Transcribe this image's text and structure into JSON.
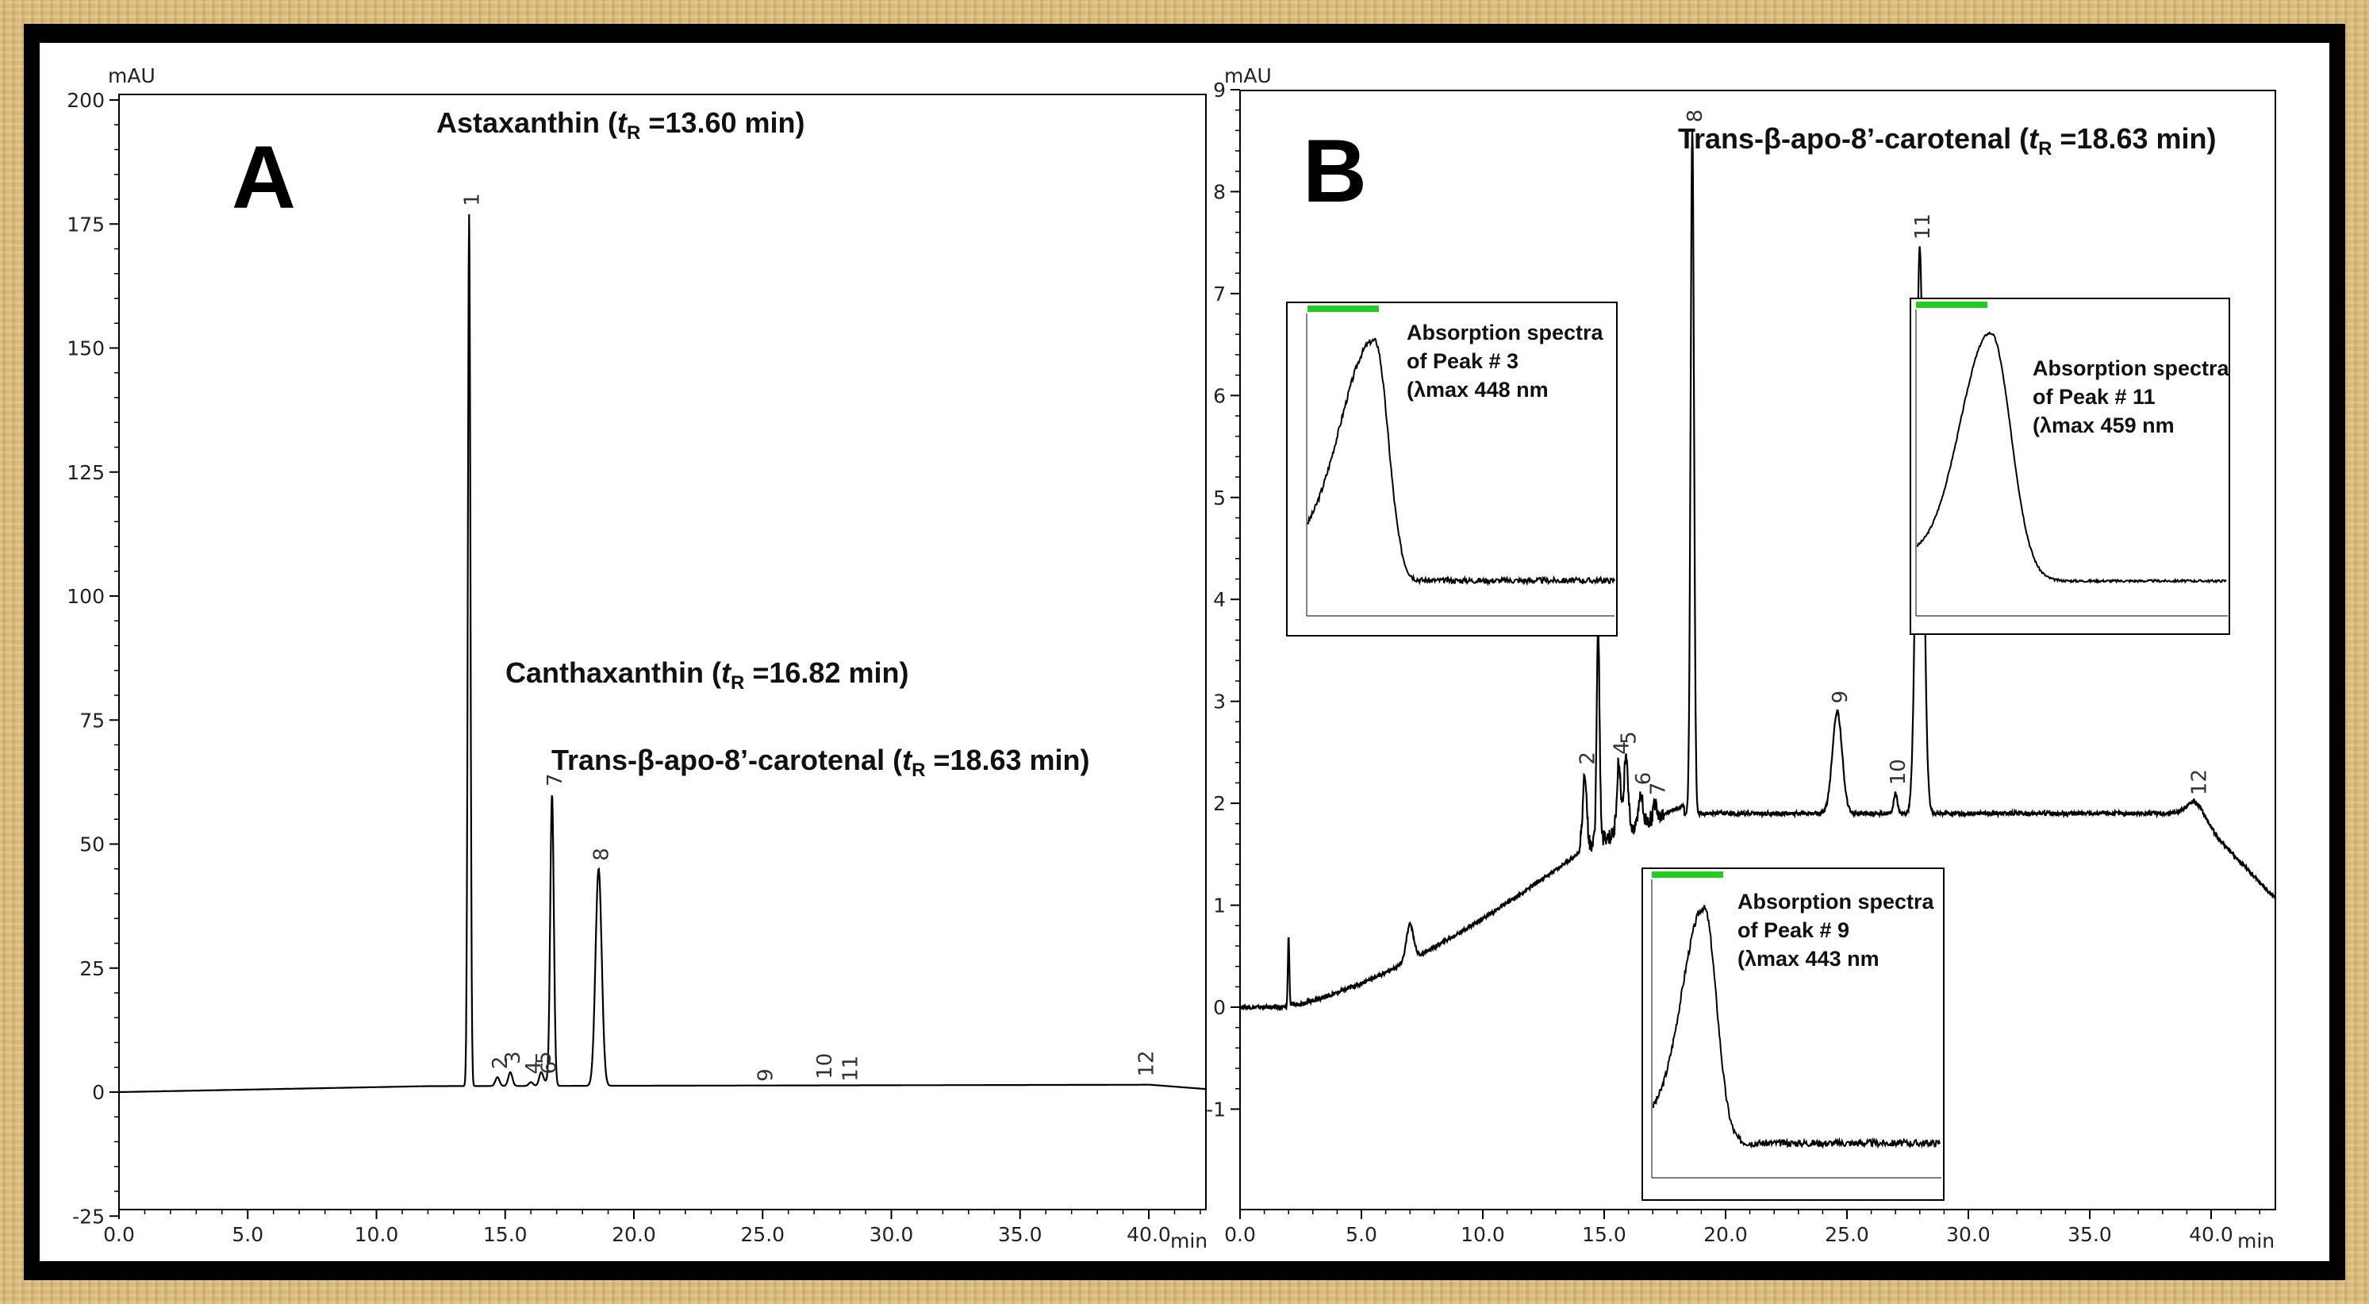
{
  "chart_data": [
    {
      "panel": "A",
      "type": "line",
      "unit": "mAU",
      "x_unit": "min",
      "xlim": [
        0,
        40
      ],
      "ylim": [
        -25,
        200
      ],
      "x_ticks": [
        "0.0",
        "5.0",
        "10.0",
        "15.0",
        "20.0",
        "25.0",
        "30.0",
        "35.0",
        "40.0"
      ],
      "y_ticks": [
        "200",
        "175",
        "150",
        "125",
        "100",
        "75",
        "50",
        "25",
        "0",
        "-25"
      ],
      "peaks": [
        {
          "label": "1",
          "x": 13.6,
          "y": 177
        },
        {
          "label": "2",
          "x": 14.7,
          "y": 3
        },
        {
          "label": "3",
          "x": 15.2,
          "y": 4
        },
        {
          "label": "4",
          "x": 16.0,
          "y": 2
        },
        {
          "label": "5",
          "x": 16.4,
          "y": 4
        },
        {
          "label": "6",
          "x": 16.6,
          "y": 2
        },
        {
          "label": "7",
          "x": 16.82,
          "y": 60
        },
        {
          "label": "8",
          "x": 18.63,
          "y": 45
        },
        {
          "label": "9",
          "x": 25.0,
          "y": 0.5
        },
        {
          "label": "10",
          "x": 27.3,
          "y": 1
        },
        {
          "label": "11",
          "x": 28.3,
          "y": 0.5
        },
        {
          "label": "12",
          "x": 39.8,
          "y": 1.5
        }
      ],
      "annotations": [
        {
          "name": "Astaxanthin",
          "tr": "13.60 min"
        },
        {
          "name": "Canthaxanthin",
          "tr": "16.82 min"
        },
        {
          "name": "Trans-β-apo-8’-carotenal",
          "tr": "18.63 min"
        }
      ]
    },
    {
      "panel": "B",
      "type": "line",
      "unit": "mAU",
      "x_unit": "min",
      "xlim": [
        0,
        45
      ],
      "ylim": [
        -1.6,
        9.6
      ],
      "x_ticks": [
        "0.0",
        "5.0",
        "10.0",
        "15.0",
        "20.0",
        "25.0",
        "30.0",
        "35.0",
        "40.0"
      ],
      "y_ticks": [
        "9",
        "8",
        "7",
        "6",
        "5",
        "4",
        "3",
        "2",
        "1",
        "0",
        "-1"
      ],
      "peaks": [
        {
          "label": "2",
          "x": 14.2,
          "y": 2.3
        },
        {
          "label": "3",
          "x": 14.75,
          "y": 3.7
        },
        {
          "label": "4",
          "x": 15.6,
          "y": 2.4
        },
        {
          "label": "5",
          "x": 15.9,
          "y": 2.5
        },
        {
          "label": "6",
          "x": 16.5,
          "y": 2.1
        },
        {
          "label": "7",
          "x": 17.1,
          "y": 2.0
        },
        {
          "label": "8",
          "x": 18.63,
          "y": 8.6
        },
        {
          "label": "9",
          "x": 24.6,
          "y": 2.9
        },
        {
          "label": "10",
          "x": 27.0,
          "y": 2.1
        },
        {
          "label": "11",
          "x": 28.0,
          "y": 7.45
        },
        {
          "label": "12",
          "x": 39.4,
          "y": 2.0
        }
      ],
      "annotations": [
        {
          "name": "Trans-β-apo-8’-carotenal",
          "tr": "18.63 min"
        }
      ]
    }
  ],
  "panels": {
    "a": {
      "letter": "A",
      "unit": "mAU",
      "x_unit": "min"
    },
    "b": {
      "letter": "B",
      "unit": "mAU",
      "x_unit": "min"
    }
  },
  "annotations": {
    "a_astaxanthin": {
      "name": "Astaxanthin (",
      "t": "t",
      "sub": "R",
      "value": " =13.60 min)"
    },
    "a_canthaxanthin": {
      "name": "Canthaxanthin (",
      "t": "t",
      "sub": "R",
      "value": " =16.82 min)"
    },
    "a_apocarotenal": {
      "name": "Trans-β-apo-8’-carotenal  (",
      "t": "t",
      "sub": "R",
      "value": " =18.63 min)"
    },
    "b_apocarotenal": {
      "name": "Trans-β-apo-8’-carotenal  (",
      "t": "t",
      "sub": "R",
      "value": " =18.63 min)"
    }
  },
  "insets": {
    "peak3": {
      "line1": "Absorption spectra",
      "line2": "of Peak # 3",
      "line3": "(λmax 448  nm"
    },
    "peak11": {
      "line1": "Absorption spectra",
      "line2": " of Peak # 11",
      "line3": "(λmax 459  nm"
    },
    "peak9": {
      "line1": "Absorption spectra",
      "line2": "of Peak # 9",
      "line3": "(λmax 443  nm"
    }
  },
  "colors": {
    "trace": "#000000",
    "marker": "#1f1f8f",
    "inset_bar": "#22cc22",
    "frame": "#000000"
  }
}
